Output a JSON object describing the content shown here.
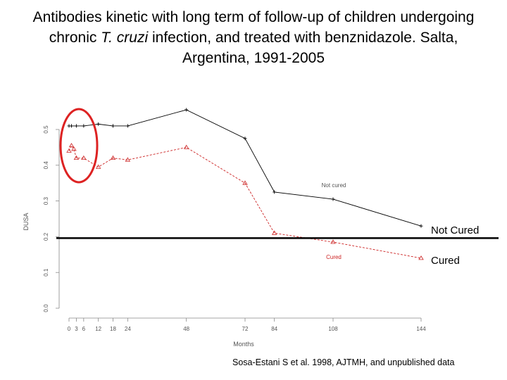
{
  "title": {
    "part1": "Antibodies kinetic with long term of follow-up of children undergoing chronic ",
    "italic": "T. cruzi",
    "part2": " infection, and treated with benznidazole. Salta, Argentina, 1991-2005"
  },
  "source": "Sosa-Estani S et al. 1998, AJTMH, and unpublished data",
  "colors": {
    "not_cured": "#000000",
    "cured": "#cc2222",
    "highlight_circle": "#dd2222",
    "threshold": "#000000"
  },
  "chart_data": {
    "type": "line",
    "xlabel": "Months",
    "ylabel": "DUSA",
    "x_ticks": [
      0,
      3,
      6,
      12,
      18,
      24,
      48,
      72,
      84,
      108,
      144
    ],
    "y_ticks": [
      "0.0",
      "0.1",
      "0.2",
      "0.3",
      "0.4",
      "0.5"
    ],
    "ylim": [
      0.0,
      0.5
    ],
    "grid": false,
    "threshold": 0.196,
    "series": [
      {
        "name": "Not cured",
        "callout": "Not Cured",
        "x": [
          0,
          1,
          3,
          6,
          12,
          18,
          24,
          48,
          72,
          84,
          108,
          144
        ],
        "y": [
          0.51,
          0.51,
          0.51,
          0.51,
          0.515,
          0.51,
          0.51,
          0.555,
          0.475,
          0.325,
          0.305,
          0.23
        ]
      },
      {
        "name": "Cured",
        "callout": "Cured",
        "x": [
          0,
          1,
          2,
          3,
          6,
          12,
          18,
          24,
          48,
          72,
          84,
          108,
          144
        ],
        "y": [
          0.44,
          0.455,
          0.445,
          0.42,
          0.42,
          0.395,
          0.42,
          0.415,
          0.45,
          0.35,
          0.21,
          0.185,
          0.14
        ]
      }
    ]
  }
}
